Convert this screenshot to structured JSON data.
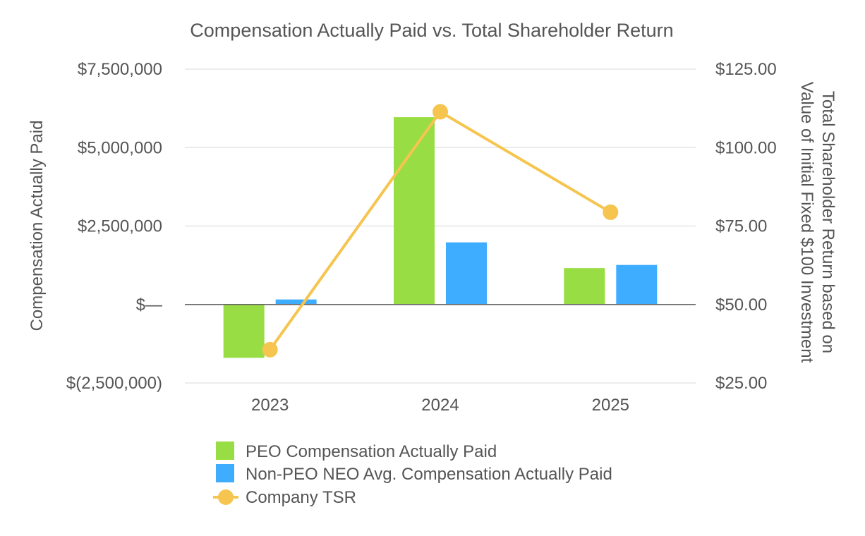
{
  "chart_data": {
    "type": "bar",
    "title": "Compensation Actually Paid vs. Total Shareholder Return",
    "categories": [
      "2023",
      "2024",
      "2025"
    ],
    "ylabel": "Compensation Actually Paid",
    "y2label_line1": "Total Shareholder Return based on",
    "y2label_line2": "Value of Initial Fixed $100 Investment",
    "ylim": [
      -2500000,
      7500000
    ],
    "y2lim": [
      25,
      125
    ],
    "yticks": [
      -2500000,
      0,
      2500000,
      5000000,
      7500000
    ],
    "ytick_labels": [
      "$(2,500,000)",
      "$—",
      "$2,500,000",
      "$5,000,000",
      "$7,500,000"
    ],
    "y2ticks": [
      25,
      50,
      75,
      100,
      125
    ],
    "y2tick_labels": [
      "$25.00",
      "$50.00",
      "$75.00",
      "$100.00",
      "$125.00"
    ],
    "grid": true,
    "legend_position": "bottom",
    "series": [
      {
        "name": "PEO Compensation Actually Paid",
        "kind": "bar",
        "axis": "left",
        "color": "#99dd44",
        "values": [
          -1700000,
          5970000,
          1160000
        ]
      },
      {
        "name": "Non-PEO NEO Avg. Compensation Actually Paid",
        "kind": "bar",
        "axis": "left",
        "color": "#3fadff",
        "values": [
          160000,
          1980000,
          1260000
        ]
      },
      {
        "name": "Company TSR",
        "kind": "line",
        "axis": "right",
        "color": "#f5c54f",
        "values": [
          35.6,
          111.4,
          79.4
        ]
      }
    ]
  }
}
